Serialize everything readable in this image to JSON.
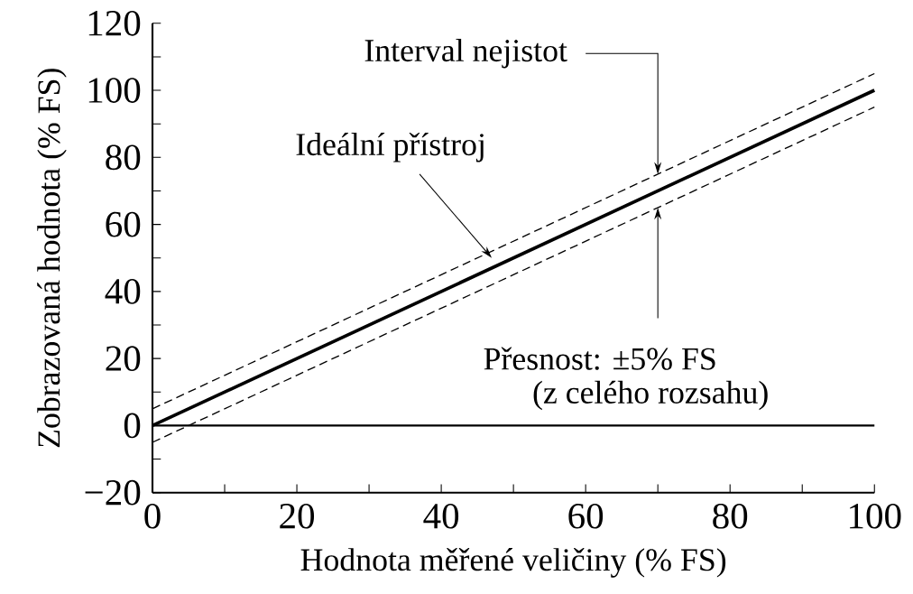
{
  "chart_data": {
    "type": "line",
    "xlabel": "Hodnota měřené veličiny (% FS)",
    "ylabel": "Zobrazovaná hodnota (% FS)",
    "series": [
      {
        "color": "#000000",
        "x": [
          0,
          50,
          100
        ],
        "values": [
          0,
          50,
          100
        ],
        "line_style": "solid"
      },
      {
        "color": "#000000",
        "x": [
          0,
          50,
          100
        ],
        "values": [
          5,
          55,
          105
        ],
        "line_style": "dashed"
      },
      {
        "color": "#000000",
        "x": [
          0,
          50,
          100
        ],
        "values": [
          -5,
          45,
          95
        ],
        "line_style": "dashed"
      }
    ],
    "xlim": [
      0,
      100
    ],
    "ylim": [
      -20,
      120
    ],
    "xticks": [
      0,
      {
        "value": 10,
        "label": null
      },
      20,
      {
        "value": 30,
        "label": null
      },
      40,
      {
        "value": 50,
        "label": null
      },
      60,
      {
        "value": 70,
        "label": null
      },
      80,
      {
        "value": 90,
        "label": null
      },
      100
    ],
    "yticks": [
      {
        "value": -20,
        "label": "−20"
      },
      {
        "value": -10,
        "label": null
      },
      0,
      {
        "value": 10,
        "label": null
      },
      20,
      {
        "value": 30,
        "label": null
      },
      40,
      {
        "value": 50,
        "label": null
      },
      60,
      {
        "value": 70,
        "label": null
      },
      80,
      {
        "value": 90,
        "label": null
      },
      100,
      {
        "value": 110,
        "label": null
      },
      120
    ],
    "ref_lines": [
      {
        "axis": "y",
        "value": 0,
        "color": "#000000"
      }
    ],
    "annotations": [
      {
        "text": "Interval nejistot",
        "x": 70,
        "y": 75
      },
      "Ideální přístroj",
      {
        "text": "Přesnost: ±5% FS",
        "x": 70,
        "y": 65
      },
      "(z celého rozsahu)"
    ],
    "grid": false,
    "marker": "none"
  }
}
